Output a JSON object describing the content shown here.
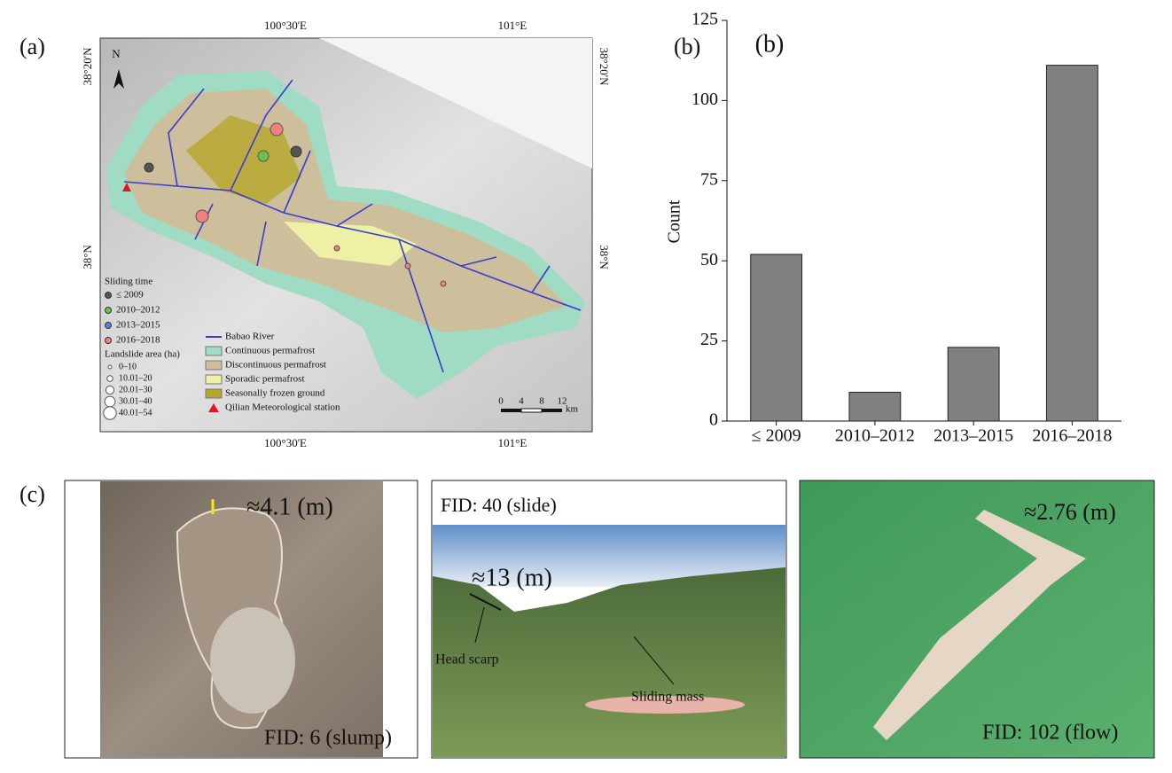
{
  "panel_labels": [
    "(a)",
    "(b)",
    "(c)"
  ],
  "map": {
    "top_ticks": [
      "100°30'E",
      "101°E"
    ],
    "bottom_ticks": [
      "100°30'E",
      "101°E"
    ],
    "left_ticks": [
      "38°20'N",
      "38°N"
    ],
    "right_ticks": [
      "38°20'N",
      "38°N"
    ],
    "north": "N",
    "legend_sliding": {
      "title": "Sliding time",
      "items": [
        {
          "label": "≤ 2009",
          "color": "#555555"
        },
        {
          "label": "2010–2012",
          "color": "#6cc24a"
        },
        {
          "label": "2013–2015",
          "color": "#5b7fd6"
        },
        {
          "label": "2016–2018",
          "color": "#f07f7f"
        }
      ]
    },
    "legend_area": {
      "title": "Landslide area (ha)",
      "items": [
        "0–10",
        "10.01–20",
        "20.01–30",
        "30.01–40",
        "40.01–54"
      ]
    },
    "legend_layers": [
      {
        "label": "Babao River",
        "color": "#3b3bd1"
      },
      {
        "label": "Continuous permafrost",
        "color": "#9fdcc3"
      },
      {
        "label": "Discontinuous permafrost",
        "color": "#cdbf9c"
      },
      {
        "label": "Sporadic permafrost",
        "color": "#eef0a6"
      },
      {
        "label": "Seasonally frozen ground",
        "color": "#b5a72a"
      },
      {
        "label": "Qilian Meteorological station",
        "color": "#e8141b"
      }
    ],
    "scale": {
      "ticks": [
        0,
        4,
        8,
        12
      ],
      "unit": "km"
    }
  },
  "chart_data": {
    "type": "bar",
    "categories": [
      "≤ 2009",
      "2010–2012",
      "2013–2015",
      "2016–2018"
    ],
    "values": [
      52,
      9,
      23,
      111
    ],
    "color": "#808080",
    "y_label": "Count",
    "ylim": [
      0,
      125
    ],
    "yticks": [
      0,
      25,
      50,
      75,
      100,
      125
    ]
  },
  "photos": [
    {
      "measure": "≈4.1 (m)",
      "caption": "FID: 6 (slump)"
    },
    {
      "title": "FID: 40 (slide)",
      "measure": "≈13 (m)",
      "labels": [
        "Head scarp",
        "Sliding mass"
      ]
    },
    {
      "measure": "≈2.76 (m)",
      "caption": "FID: 102 (flow)"
    }
  ]
}
